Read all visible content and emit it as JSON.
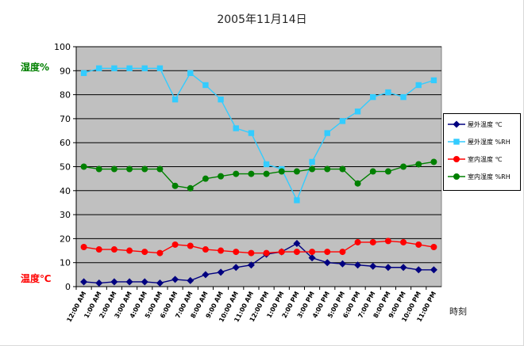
{
  "chart_data": {
    "type": "line",
    "title": "2005年11月14日",
    "xlabel": "時刻",
    "ylabel_left_top": "湿度%",
    "ylabel_left_bottom": "温度℃",
    "ylim": [
      0,
      100
    ],
    "yticks": [
      0,
      10,
      20,
      30,
      40,
      50,
      60,
      70,
      80,
      90,
      100
    ],
    "grid": true,
    "plot_background": "#c0c0c0",
    "legend_position": "right",
    "categories": [
      "12:00 AM",
      "1:00 AM",
      "2:00 AM",
      "3:00 AM",
      "4:00 AM",
      "5:00 AM",
      "6:00 AM",
      "7:00 AM",
      "8:00 AM",
      "9:00 AM",
      "10:00 AM",
      "11:00 AM",
      "12:00 PM",
      "1:00 PM",
      "2:00 PM",
      "3:00 PM",
      "4:00 PM",
      "5:00 PM",
      "6:00 PM",
      "7:00 PM",
      "8:00 PM",
      "9:00 PM",
      "10:00 PM",
      "11:00 PM"
    ],
    "series": [
      {
        "name": "屋外温度 ℃",
        "color": "#000080",
        "marker": "diamond",
        "values": [
          2,
          1.5,
          2,
          2,
          2,
          1.5,
          3,
          2.5,
          5,
          6,
          8,
          9,
          13.5,
          14.5,
          18,
          12,
          10,
          9.5,
          9,
          8.5,
          8,
          8,
          7,
          7
        ]
      },
      {
        "name": "屋外湿度 %RH",
        "color": "#33ccff",
        "marker": "square",
        "values": [
          89,
          91,
          91,
          91,
          91,
          91,
          78,
          89,
          84,
          78,
          66,
          64,
          51,
          49,
          36,
          52,
          64,
          69,
          73,
          79,
          81,
          79,
          84,
          86
        ]
      },
      {
        "name": "室内温度 ℃",
        "color": "#ff0000",
        "marker": "circle",
        "values": [
          16.5,
          15.5,
          15.5,
          15,
          14.5,
          14,
          17.5,
          17,
          15.5,
          15,
          14.5,
          14,
          14,
          14.5,
          14.5,
          14.5,
          14.5,
          14.5,
          18.5,
          18.5,
          19,
          18.5,
          17.5,
          16.5
        ]
      },
      {
        "name": "室内湿度 %RH",
        "color": "#008000",
        "marker": "circle",
        "values": [
          50,
          49,
          49,
          49,
          49,
          49,
          42,
          41,
          45,
          46,
          47,
          47,
          47,
          48,
          48,
          49,
          49,
          49,
          43,
          48,
          48,
          50,
          51,
          52
        ]
      }
    ]
  },
  "colors": {
    "humidity_label": "#008000",
    "temperature_label": "#ff0000"
  }
}
